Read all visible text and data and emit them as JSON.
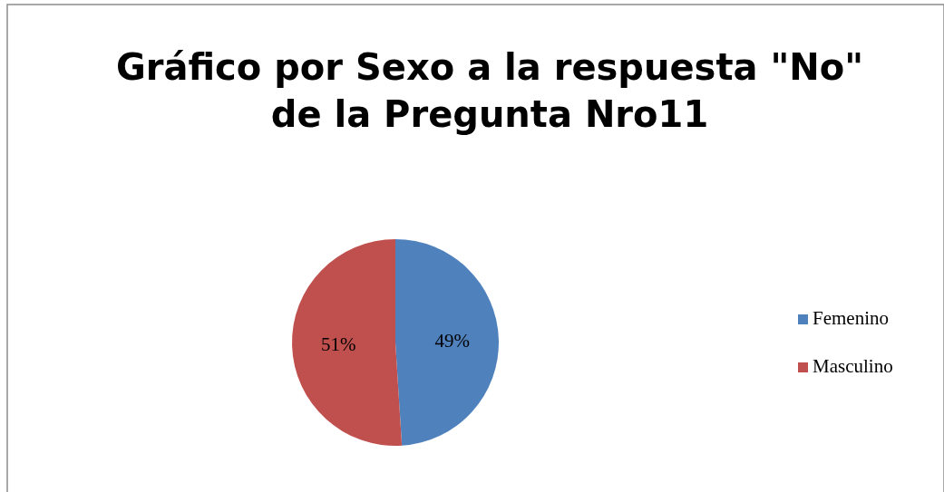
{
  "chart_data": {
    "type": "pie",
    "title": "Gráfico por Sexo a la respuesta \"No\"\nde la Pregunta Nro11",
    "categories": [
      "Femenino",
      "Masculino"
    ],
    "values": [
      49,
      51
    ],
    "colors": [
      "#4f81bd",
      "#c0504d"
    ],
    "value_labels": [
      "49%",
      "51%"
    ],
    "legend": "right"
  }
}
